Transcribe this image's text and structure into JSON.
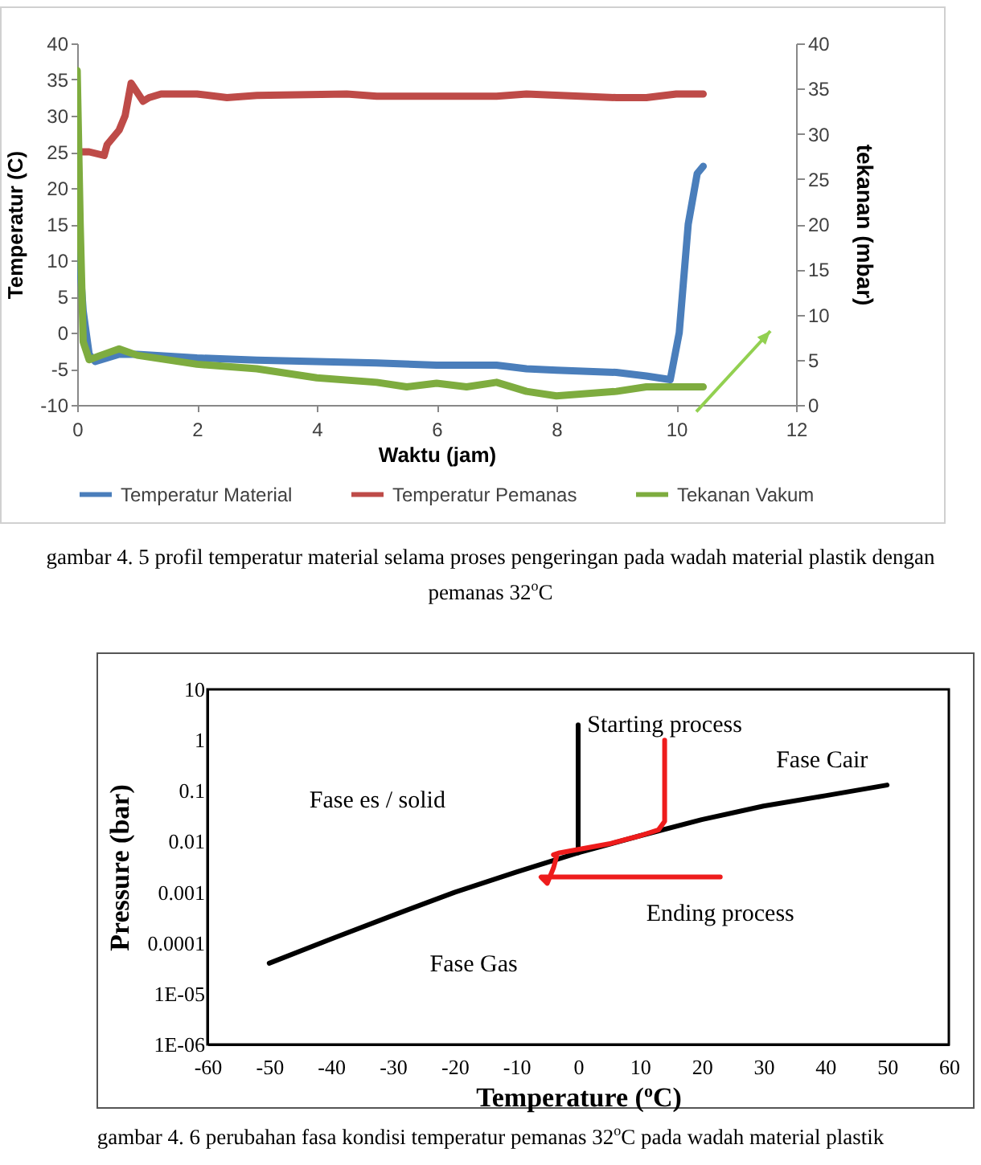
{
  "chart_data": [
    {
      "type": "line",
      "xlabel": "Waktu (jam)",
      "ylabel": "Temperatur (C)",
      "y2label": "tekanan (mbar)",
      "legend": "bottom",
      "xlim": [
        0,
        12
      ],
      "xticks": [
        0,
        2,
        4,
        6,
        8,
        10,
        12
      ],
      "ylim": [
        -10,
        40
      ],
      "yticks": [
        -10,
        -5,
        0,
        5,
        10,
        15,
        20,
        25,
        30,
        35,
        40
      ],
      "y2lim": [
        0,
        40
      ],
      "y2ticks": [
        0,
        5,
        10,
        15,
        20,
        25,
        30,
        35,
        40
      ],
      "annotations": [
        "gambar 4. 5 profil temperatur material selama proses pengeringan pada wadah material plastik dengan pemanas 32$^{o}$C"
      ],
      "series": [
        {
          "name": "Temperatur Material",
          "color": "#4a7ebb",
          "x": [
            0,
            0.1,
            0.2,
            0.3,
            0.5,
            0.7,
            1,
            2,
            3,
            4,
            5,
            6,
            7,
            7.5,
            8,
            9,
            9.5,
            9.9,
            10.05,
            10.2,
            10.35,
            10.45
          ],
          "values": [
            15,
            3,
            -3,
            -4,
            -3.5,
            -3,
            -3,
            -3.5,
            -3.8,
            -4,
            -4.2,
            -4.5,
            -4.5,
            -5,
            -5.2,
            -5.5,
            -6,
            -6.5,
            0,
            15,
            22,
            23
          ]
        },
        {
          "name": "Temperatur Pemanas",
          "color": "#be4b48",
          "x": [
            0,
            0.2,
            0.45,
            0.5,
            0.7,
            0.8,
            0.9,
            1.1,
            1.2,
            1.4,
            2,
            2.5,
            3,
            4.5,
            5,
            7,
            7.5,
            9,
            9.5,
            10,
            10.45
          ],
          "values": [
            25,
            25,
            24.5,
            26,
            28,
            30,
            34.5,
            32,
            32.5,
            33,
            33,
            32.5,
            32.8,
            33,
            32.7,
            32.7,
            33,
            32.5,
            32.5,
            33,
            33
          ]
        },
        {
          "name": "Tekanan Vakum",
          "color": "#7eac3f",
          "axis": "y2",
          "x": [
            0,
            0.05,
            0.1,
            0.2,
            0.4,
            0.7,
            1,
            2,
            3,
            4,
            5,
            5.5,
            6,
            6.5,
            7,
            7.5,
            8,
            9,
            9.5,
            10,
            10.45
          ],
          "values": [
            37,
            20,
            7,
            5,
            5.5,
            6.2,
            5.5,
            4.5,
            4,
            3,
            2.5,
            2,
            2.4,
            2,
            2.5,
            1.5,
            1,
            1.5,
            2,
            2,
            2
          ]
        }
      ]
    },
    {
      "type": "line",
      "xlabel": "Temperature ($^{o}$C)",
      "ylabel": "Pressure (bar)",
      "log": "y",
      "xlim": [
        -60,
        60
      ],
      "xticks": [
        -60,
        -50,
        -40,
        -30,
        -20,
        -10,
        0,
        10,
        20,
        30,
        40,
        50,
        60
      ],
      "ylim": [
        1e-06,
        10
      ],
      "yticks": [
        {
          "value": 1e-06,
          "label": "1E-06"
        },
        {
          "value": 1e-05,
          "label": "1E-05"
        },
        0.0001,
        0.001,
        0.01,
        0.1,
        1,
        10
      ],
      "annotations": [
        {
          "text": "Starting process",
          "x": 14,
          "y": 1
        },
        "Fase Cair",
        "Fase es / solid",
        {
          "text": "Ending process",
          "x": 23,
          "y": 0.002
        },
        "Fase Gas",
        "gambar 4. 6 perubahan fasa kondisi temperatur pemanas 32$^{o}$C pada wadah material plastik"
      ],
      "series": [
        {
          "color": "#000000",
          "x": [
            -50,
            -40,
            -30,
            -20,
            -10,
            0,
            10,
            20,
            30,
            40,
            50
          ],
          "values": [
            4e-05,
            0.00012,
            0.00035,
            0.001,
            0.0025,
            0.006,
            0.013,
            0.027,
            0.05,
            0.08,
            0.13
          ]
        },
        {
          "color": "#000000",
          "x": [
            0,
            0
          ],
          "values": [
            0.006,
            2
          ]
        },
        {
          "color": "#ee1c1c",
          "x": [
            14,
            14,
            14,
            13,
            10,
            5,
            0,
            -3,
            -4,
            -3.5,
            -4,
            -5,
            -6,
            0,
            10,
            23
          ],
          "values": [
            1,
            0.1,
            0.025,
            0.017,
            0.013,
            0.009,
            0.007,
            0.006,
            0.0055,
            0.005,
            0.003,
            0.0015,
            0.002,
            0.002,
            0.002,
            0.002
          ]
        }
      ]
    }
  ]
}
